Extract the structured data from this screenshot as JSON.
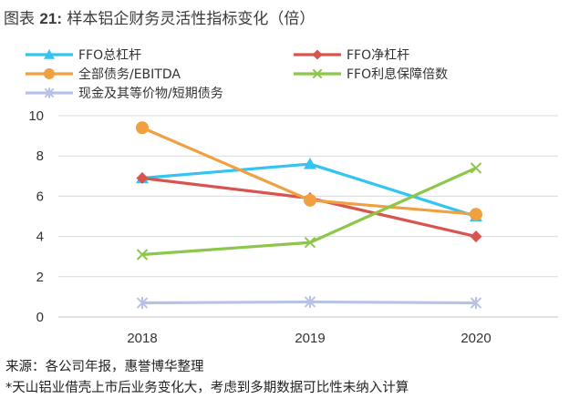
{
  "title_prefix": "图表",
  "title_number": "21:",
  "title_text": "样本铝企财务灵活性指标变化（倍）",
  "chart_data": {
    "type": "line",
    "x": [
      "2018",
      "2019",
      "2020"
    ],
    "ylim": [
      0,
      10
    ],
    "yticks": [
      0,
      2,
      4,
      6,
      8,
      10
    ],
    "grid": true,
    "legend_position": "top",
    "series": [
      {
        "name": "FFO总杠杆",
        "values": [
          6.9,
          7.6,
          5.0
        ],
        "color": "#33C4F2",
        "marker": "triangle"
      },
      {
        "name": "FFO净杠杆",
        "values": [
          6.9,
          5.9,
          4.0
        ],
        "color": "#D9534F",
        "marker": "diamond"
      },
      {
        "name": "全部债务/EBITDA",
        "values": [
          9.4,
          5.8,
          5.1
        ],
        "color": "#F0A040",
        "marker": "circle"
      },
      {
        "name": "FFO利息保障倍数",
        "values": [
          3.1,
          3.7,
          7.4
        ],
        "color": "#8CC64A",
        "marker": "x"
      },
      {
        "name": "现金及其等价物/短期债务",
        "values": [
          0.7,
          0.75,
          0.7
        ],
        "color": "#B8C2E6",
        "marker": "star"
      }
    ]
  },
  "notes": {
    "source": "来源：各公司年报，惠誉博华整理",
    "footnote": "*天山铝业借壳上市后业务变化大，考虑到多期数据可比性未纳入计算"
  }
}
